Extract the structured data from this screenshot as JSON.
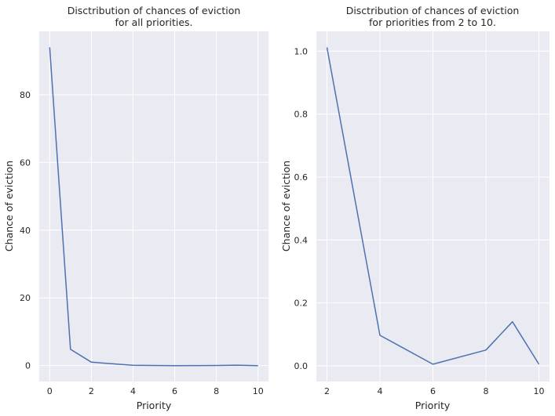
{
  "chart_data": [
    {
      "type": "line",
      "title": [
        "Disctribution of chances of eviction",
        "for all priorities."
      ],
      "xlabel": "Priority",
      "ylabel": "Chance of eviction",
      "xlim": [
        -0.5,
        10.5
      ],
      "ylim": [
        -4.7,
        98.7
      ],
      "xticks": [
        0,
        2,
        4,
        6,
        8,
        10
      ],
      "yticks": [
        0,
        20,
        40,
        60,
        80
      ],
      "grid": true,
      "series": [
        {
          "x": [
            0,
            1,
            2,
            4,
            6,
            8,
            9,
            10
          ],
          "y": [
            94.0,
            4.8,
            1.01,
            0.097,
            0.005,
            0.05,
            0.14,
            0.005
          ],
          "color": "#4c72b0"
        }
      ]
    },
    {
      "type": "line",
      "title": [
        "Disctribution of chances of eviction",
        "for priorities from 2 to 10."
      ],
      "xlabel": "Priority",
      "ylabel": "Chance of eviction",
      "xlim": [
        1.6,
        10.4
      ],
      "ylim": [
        -0.05,
        1.063
      ],
      "xticks": [
        2,
        4,
        6,
        8,
        10
      ],
      "yticks": [
        0.0,
        0.2,
        0.4,
        0.6,
        0.8,
        1.0
      ],
      "ytick_format": 1,
      "grid": true,
      "series": [
        {
          "x": [
            2,
            4,
            6,
            8,
            9,
            10
          ],
          "y": [
            1.012,
            0.097,
            0.005,
            0.05,
            0.14,
            0.005
          ],
          "color": "#4c72b0"
        }
      ]
    }
  ]
}
